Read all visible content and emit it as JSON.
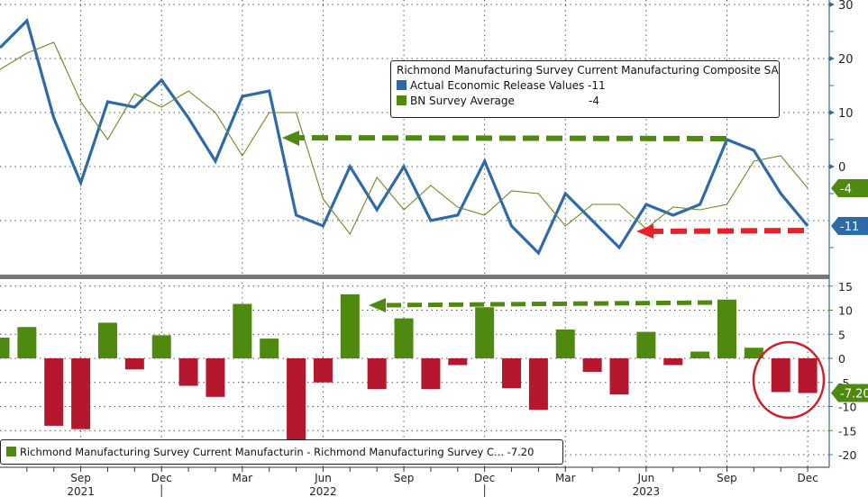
{
  "chart_data": [
    {
      "type": "line",
      "title": "Richmond Manufacturing Survey Current Manufacturing Composite SA",
      "x": [
        "Jun 2021",
        "Jul 2021",
        "Aug 2021",
        "Sep 2021",
        "Oct 2021",
        "Nov 2021",
        "Dec 2021",
        "Jan 2022",
        "Feb 2022",
        "Mar 2022",
        "Apr 2022",
        "May 2022",
        "Jun 2022",
        "Jul 2022",
        "Aug 2022",
        "Sep 2022",
        "Oct 2022",
        "Nov 2022",
        "Dec 2022",
        "Jan 2023",
        "Feb 2023",
        "Mar 2023",
        "Apr 2023",
        "May 2023",
        "Jun 2023",
        "Jul 2023",
        "Aug 2023",
        "Sep 2023",
        "Oct 2023",
        "Nov 2023",
        "Dec 2023"
      ],
      "series": [
        {
          "name": "Actual Economic Release Values",
          "last": "-11",
          "color": "#2f6aa8",
          "values": [
            22,
            27,
            9,
            -3,
            12,
            11,
            16,
            9,
            1,
            13,
            14,
            -9,
            -11,
            0,
            -8,
            0,
            -10,
            -9,
            1,
            -11,
            -16,
            -5,
            -10,
            -15,
            -7,
            -9,
            -7,
            5,
            3,
            -5,
            -11
          ]
        },
        {
          "name": "BN Survey Average",
          "last": "-4",
          "color": "#6b8a1e",
          "values": [
            18,
            21,
            23,
            12,
            5,
            13.5,
            11,
            14,
            10,
            2,
            10,
            10,
            -6,
            -12.5,
            -2,
            -8,
            -3.5,
            -7.5,
            -9,
            -4.5,
            -5,
            -11,
            -7,
            -7,
            -11.5,
            -7.5,
            -8,
            -7,
            1,
            2,
            -4
          ]
        }
      ],
      "yticks": [
        "30",
        "20",
        "10",
        "0"
      ],
      "ylim": [
        -20,
        31
      ],
      "badges": [
        "-4",
        "-11"
      ]
    },
    {
      "type": "bar",
      "title": "Richmond Manufacturing Survey Current Manufacturin - Richmond Manufacturing Survey C...",
      "last": "-7.20",
      "values": [
        4.3,
        6.5,
        -14,
        -14.7,
        7.4,
        -2.3,
        4.8,
        -5.7,
        -8,
        11.3,
        4.1,
        -17,
        -5,
        13.3,
        -6.4,
        8.3,
        -6.4,
        -1.4,
        10.6,
        -6.2,
        -10.7,
        6,
        -2.8,
        -7.5,
        5.5,
        -1.4,
        1.4,
        12.2,
        2.2,
        -7,
        -7.2
      ],
      "positive_color": "#4f8a10",
      "negative_color": "#b5172f",
      "yticks": [
        "15",
        "10",
        "5",
        "0",
        "-5",
        "-10",
        "-15",
        "-20"
      ],
      "ylim": [
        -22,
        17
      ]
    }
  ],
  "xaxis": {
    "month_ticks": [
      {
        "i": 3,
        "label": "Sep"
      },
      {
        "i": 6,
        "label": "Dec"
      },
      {
        "i": 9,
        "label": "Mar"
      },
      {
        "i": 12,
        "label": "Jun"
      },
      {
        "i": 15,
        "label": "Sep"
      },
      {
        "i": 18,
        "label": "Dec"
      },
      {
        "i": 21,
        "label": "Mar"
      },
      {
        "i": 24,
        "label": "Jun"
      },
      {
        "i": 27,
        "label": "Sep"
      },
      {
        "i": 30,
        "label": "Dec"
      }
    ],
    "years": [
      {
        "i": 3,
        "label": "2021"
      },
      {
        "i": 12,
        "label": "2022"
      },
      {
        "i": 24,
        "label": "2023"
      }
    ]
  },
  "legend_top": {
    "title": "Richmond Manufacturing Survey Current Manufacturing Composite SA",
    "row1_label": "Actual Economic Release Values",
    "row1_value": "-11",
    "row2_label": "BN Survey Average",
    "row2_value": "-4"
  },
  "legend_bottom": {
    "label": "Richmond Manufacturing Survey Current Manufacturin - Richmond Manufacturing Survey C...",
    "value": "-7.20"
  }
}
